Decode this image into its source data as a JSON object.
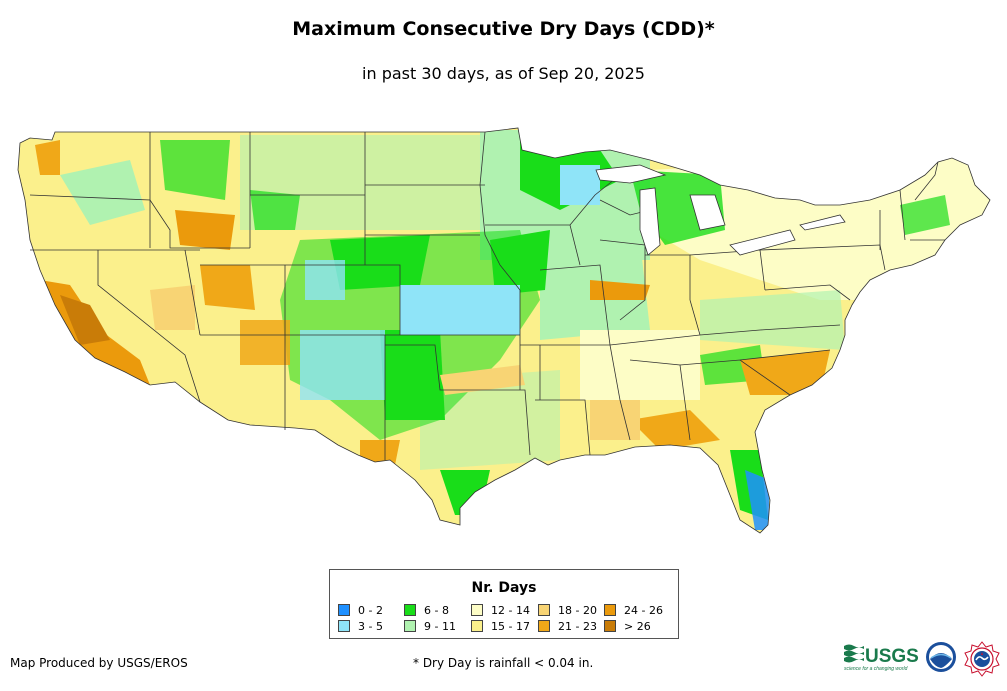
{
  "title": "Maximum Consecutive Dry Days (CDD)*",
  "subtitle": "in past 30 days, as of Sep 20, 2025",
  "legend": {
    "title": "Nr. Days",
    "classes": [
      {
        "label": "0 - 2",
        "color": "#1e90ff"
      },
      {
        "label": "3 - 5",
        "color": "#8fe4f8"
      },
      {
        "label": "6 - 8",
        "color": "#19dd19"
      },
      {
        "label": "9 - 11",
        "color": "#b0f2b0"
      },
      {
        "label": "12 - 14",
        "color": "#fdfdc6"
      },
      {
        "label": "15 - 17",
        "color": "#fbf08c"
      },
      {
        "label": "18 - 20",
        "color": "#f8d474"
      },
      {
        "label": "21 - 23",
        "color": "#f0a818"
      },
      {
        "label": "24 - 26",
        "color": "#eb9a0c"
      },
      {
        "label": "> 26",
        "color": "#c97c08"
      }
    ]
  },
  "credit": "Map Produced by USGS/EROS",
  "footnote": "* Dry Day is rainfall < 0.04 in.",
  "logos": {
    "usgs": "USGS",
    "usgs_tagline": "science for a changing world"
  },
  "icons": {
    "usgs": "usgs-logo",
    "noaa": "noaa-logo",
    "nws": "nws-logo"
  }
}
